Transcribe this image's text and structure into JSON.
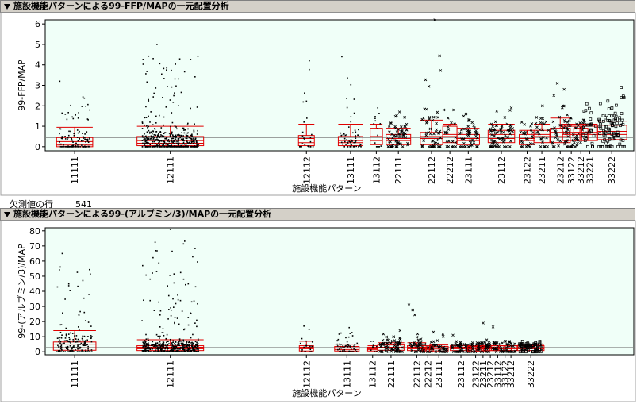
{
  "panels": [
    {
      "header": "施設機能パターンによる99-FFP/MAPの一元配置分析",
      "chart_data": {
        "type": "scatter",
        "subtype": "oneway-jitter-box",
        "ylabel": "99-FFP/MAP",
        "xlabel": "施設機能パターン",
        "ylim": [
          -0.2,
          6.2
        ],
        "yticks": [
          0,
          1,
          2,
          3,
          4,
          5,
          6
        ],
        "grand_mean": 0.45,
        "groups": [
          {
            "name": "11111",
            "n": 130,
            "q1": 0.0,
            "median": 0.08,
            "q3": 0.45,
            "mean": 0.25,
            "sd": 0.7,
            "max": 3.2,
            "marker": "dot",
            "pos": 0.04
          },
          {
            "name": "12111",
            "n": 460,
            "q1": 0.05,
            "median": 0.17,
            "q3": 0.5,
            "mean": 0.3,
            "sd": 0.7,
            "max": 5.0,
            "marker": "dot",
            "pos": 0.17
          },
          {
            "name": "12112",
            "n": 25,
            "q1": 0.05,
            "median": 0.2,
            "q3": 0.55,
            "mean": 0.4,
            "sd": 0.7,
            "max": 4.2,
            "marker": "dot",
            "pos": 0.355
          },
          {
            "name": "13111",
            "n": 60,
            "q1": 0.05,
            "median": 0.2,
            "q3": 0.5,
            "mean": 0.3,
            "sd": 0.8,
            "max": 4.4,
            "marker": "dot",
            "pos": 0.415
          },
          {
            "name": "13112",
            "n": 15,
            "q1": 0.1,
            "median": 0.3,
            "q3": 0.9,
            "mean": 0.5,
            "sd": 0.6,
            "max": 1.9,
            "marker": "dot",
            "pos": 0.45
          },
          {
            "name": "22111",
            "n": 60,
            "q1": 0.1,
            "median": 0.3,
            "q3": 0.6,
            "mean": 0.4,
            "sd": 0.5,
            "max": 1.7,
            "marker": "x",
            "pos": 0.48
          },
          {
            "name": "22112",
            "n": 50,
            "q1": 0.1,
            "median": 0.4,
            "q3": 0.7,
            "mean": 0.5,
            "sd": 0.8,
            "max": 6.2,
            "marker": "x",
            "pos": 0.525
          },
          {
            "name": "22212",
            "n": 20,
            "q1": 0.2,
            "median": 0.5,
            "q3": 1.0,
            "mean": 0.6,
            "sd": 0.5,
            "max": 1.8,
            "marker": "x",
            "pos": 0.55
          },
          {
            "name": "23111",
            "n": 50,
            "q1": 0.1,
            "median": 0.3,
            "q3": 0.6,
            "mean": 0.4,
            "sd": 0.5,
            "max": 1.6,
            "marker": "x",
            "pos": 0.575
          },
          {
            "name": "23112",
            "n": 70,
            "q1": 0.2,
            "median": 0.4,
            "q3": 0.8,
            "mean": 0.6,
            "sd": 0.5,
            "max": 1.9,
            "marker": "x",
            "pos": 0.62
          },
          {
            "name": "23122",
            "n": 25,
            "q1": 0.1,
            "median": 0.3,
            "q3": 0.6,
            "mean": 0.4,
            "sd": 0.4,
            "max": 1.2,
            "marker": "x",
            "pos": 0.655
          },
          {
            "name": "23211",
            "n": 25,
            "q1": 0.2,
            "median": 0.5,
            "q3": 0.8,
            "mean": 0.6,
            "sd": 0.5,
            "max": 2.0,
            "marker": "x",
            "pos": 0.675
          },
          {
            "name": "23212",
            "n": 40,
            "q1": 0.2,
            "median": 0.5,
            "q3": 0.9,
            "mean": 0.7,
            "sd": 0.7,
            "max": 3.1,
            "marker": "x",
            "pos": 0.7
          },
          {
            "name": "33122",
            "n": 30,
            "q1": 0.3,
            "median": 0.6,
            "q3": 1.0,
            "mean": 0.7,
            "sd": 0.4,
            "max": 1.4,
            "marker": "x",
            "pos": 0.715
          },
          {
            "name": "33212",
            "n": 20,
            "q1": 0.3,
            "median": 0.6,
            "q3": 0.9,
            "mean": 0.7,
            "sd": 0.4,
            "max": 1.3,
            "marker": "x",
            "pos": 0.728
          },
          {
            "name": "33221",
            "n": 25,
            "q1": 0.3,
            "median": 0.6,
            "q3": 1.0,
            "mean": 0.7,
            "sd": 0.4,
            "max": 2.1,
            "marker": "square",
            "pos": 0.74
          },
          {
            "name": "33222",
            "n": 90,
            "q1": 0.35,
            "median": 0.6,
            "q3": 1.05,
            "mean": 0.75,
            "sd": 0.5,
            "max": 2.9,
            "marker": "square",
            "pos": 0.77
          }
        ]
      }
    },
    {
      "header": "施設機能パターンによる99-(アルブミン/3)/MAPの一元配置分析",
      "chart_data": {
        "type": "scatter",
        "subtype": "oneway-jitter-box",
        "ylabel": "99-(アルブミン/3)/MAP",
        "xlabel": "施設機能パターン",
        "ylim": [
          -2,
          82
        ],
        "yticks": [
          0,
          10,
          20,
          30,
          40,
          50,
          60,
          70,
          80
        ],
        "grand_mean": 2.8,
        "groups": [
          {
            "name": "11111",
            "n": 180,
            "q1": 1.0,
            "median": 2.5,
            "q3": 6.5,
            "mean": 5.0,
            "sd": 9.0,
            "max": 65,
            "marker": "dot",
            "pos": 0.04
          },
          {
            "name": "12111",
            "n": 500,
            "q1": 0.8,
            "median": 2.0,
            "q3": 4.0,
            "mean": 3.0,
            "sd": 5.0,
            "max": 81,
            "marker": "dot",
            "pos": 0.17
          },
          {
            "name": "12112",
            "n": 20,
            "q1": 0.5,
            "median": 2.0,
            "q3": 4.0,
            "mean": 3.0,
            "sd": 4.0,
            "max": 17,
            "marker": "dot",
            "pos": 0.355
          },
          {
            "name": "13111",
            "n": 60,
            "q1": 0.5,
            "median": 1.5,
            "q3": 3.5,
            "mean": 2.5,
            "sd": 2.5,
            "max": 16,
            "marker": "dot",
            "pos": 0.41
          },
          {
            "name": "13112",
            "n": 10,
            "q1": 0.5,
            "median": 1.5,
            "q3": 3.0,
            "mean": 2.0,
            "sd": 2.0,
            "max": 7,
            "marker": "dot",
            "pos": 0.445
          },
          {
            "name": "22111",
            "n": 70,
            "q1": 1.0,
            "median": 2.5,
            "q3": 4.5,
            "mean": 3.0,
            "sd": 3.0,
            "max": 14,
            "marker": "x",
            "pos": 0.47
          },
          {
            "name": "22112",
            "n": 35,
            "q1": 0.8,
            "median": 2.0,
            "q3": 4.0,
            "mean": 3.0,
            "sd": 3.0,
            "max": 31,
            "marker": "x",
            "pos": 0.505
          },
          {
            "name": "22212",
            "n": 12,
            "q1": 0.5,
            "median": 1.5,
            "q3": 3.0,
            "mean": 2.0,
            "sd": 2.0,
            "max": 5,
            "marker": "x",
            "pos": 0.52
          },
          {
            "name": "23111",
            "n": 35,
            "q1": 0.5,
            "median": 1.8,
            "q3": 3.5,
            "mean": 2.5,
            "sd": 2.0,
            "max": 13,
            "marker": "x",
            "pos": 0.535
          },
          {
            "name": "23112",
            "n": 45,
            "q1": 0.8,
            "median": 2.0,
            "q3": 4.0,
            "mean": 3.0,
            "sd": 2.0,
            "max": 11,
            "marker": "x",
            "pos": 0.565
          },
          {
            "name": "23122",
            "n": 25,
            "q1": 0.5,
            "median": 1.8,
            "q3": 3.5,
            "mean": 2.5,
            "sd": 1.5,
            "max": 6,
            "marker": "x",
            "pos": 0.585
          },
          {
            "name": "23211",
            "n": 20,
            "q1": 0.5,
            "median": 1.8,
            "q3": 3.5,
            "mean": 2.5,
            "sd": 1.5,
            "max": 6,
            "marker": "x",
            "pos": 0.595
          },
          {
            "name": "23212",
            "n": 30,
            "q1": 0.8,
            "median": 2.0,
            "q3": 4.0,
            "mean": 3.0,
            "sd": 2.0,
            "max": 19,
            "marker": "x",
            "pos": 0.605
          },
          {
            "name": "33112",
            "n": 15,
            "q1": 0.8,
            "median": 2.0,
            "q3": 4.0,
            "mean": 2.5,
            "sd": 1.5,
            "max": 6,
            "marker": "x",
            "pos": 0.615
          },
          {
            "name": "33122",
            "n": 15,
            "q1": 0.8,
            "median": 2.0,
            "q3": 4.0,
            "mean": 2.5,
            "sd": 1.5,
            "max": 7,
            "marker": "x",
            "pos": 0.625
          },
          {
            "name": "33212",
            "n": 15,
            "q1": 0.8,
            "median": 2.0,
            "q3": 4.0,
            "mean": 2.5,
            "sd": 1.5,
            "max": 7,
            "marker": "x",
            "pos": 0.633
          },
          {
            "name": "33222",
            "n": 70,
            "q1": 0.8,
            "median": 2.0,
            "q3": 4.0,
            "mean": 2.8,
            "sd": 1.5,
            "max": 7,
            "marker": "square",
            "pos": 0.66
          }
        ]
      }
    }
  ],
  "missing": {
    "label": "欠測値の行",
    "value": "541"
  },
  "colors": {
    "plot_bg": "#f0fff8",
    "box": "#e00000",
    "mean_line": "#e00000",
    "grand_mean": "#808080",
    "points": "#000000"
  }
}
